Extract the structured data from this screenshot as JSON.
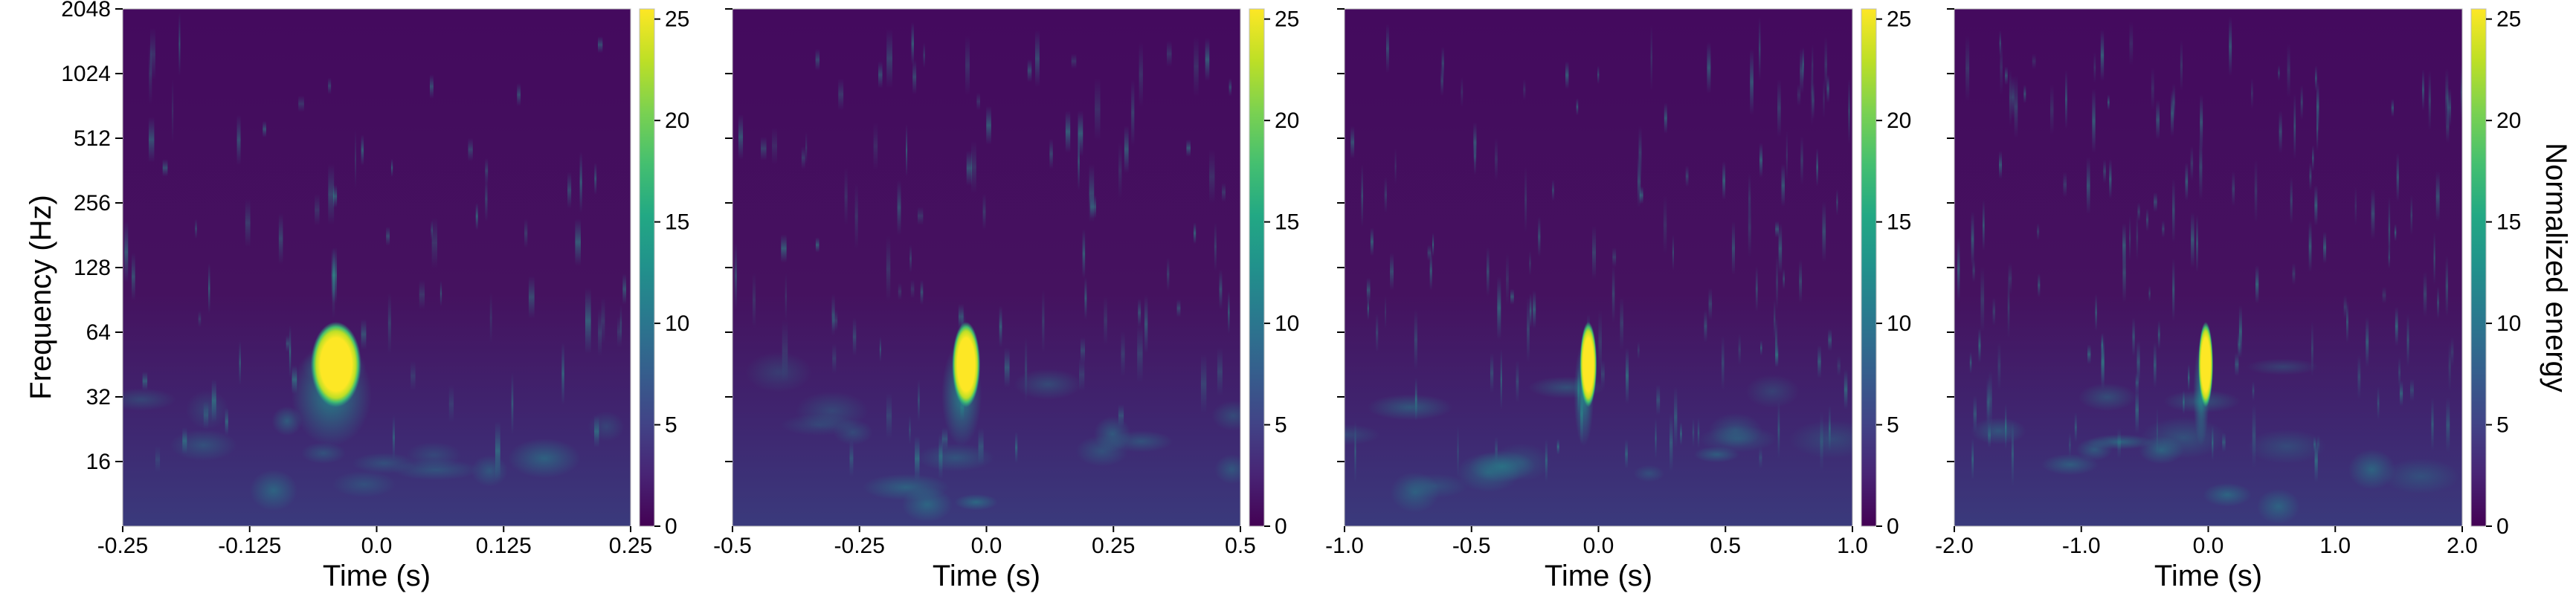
{
  "chart_data": [
    {
      "type": "heatmap",
      "xlabel": "Time (s)",
      "ylabel": "Frequency (Hz)",
      "colorbar_label": "",
      "xlim": [
        -0.25,
        0.25
      ],
      "xticks": [
        -0.25,
        -0.125,
        0.0,
        0.125,
        0.25
      ],
      "xtick_labels": [
        "-0.25",
        "-0.125",
        "0.0",
        "0.125",
        "0.25"
      ],
      "ylim": [
        8,
        2048
      ],
      "yscale": "log2",
      "yticks": [
        16,
        32,
        64,
        128,
        256,
        512,
        1024,
        2048
      ],
      "ytick_labels": [
        "16",
        "32",
        "64",
        "128",
        "256",
        "512",
        "1024",
        "2048"
      ],
      "clim": [
        0,
        25.5
      ],
      "cticks": [
        0,
        5,
        10,
        15,
        20,
        25
      ],
      "ctick_labels": [
        "0",
        "5",
        "10",
        "15",
        "20",
        "25"
      ],
      "colormap": "viridis",
      "peak": {
        "time": -0.04,
        "freq_low": 32,
        "freq_high": 64,
        "energy": 25.5
      }
    },
    {
      "type": "heatmap",
      "xlabel": "Time (s)",
      "ylabel": "",
      "colorbar_label": "",
      "xlim": [
        -0.5,
        0.5
      ],
      "xticks": [
        -0.5,
        -0.25,
        0.0,
        0.25,
        0.5
      ],
      "xtick_labels": [
        "-0.5",
        "-0.25",
        "0.0",
        "0.25",
        "0.5"
      ],
      "ylim": [
        8,
        2048
      ],
      "yscale": "log2",
      "clim": [
        0,
        25.5
      ],
      "cticks": [
        0,
        5,
        10,
        15,
        20,
        25
      ],
      "ctick_labels": [
        "0",
        "5",
        "10",
        "15",
        "20",
        "25"
      ],
      "colormap": "viridis",
      "peak": {
        "time": -0.04,
        "freq_low": 32,
        "freq_high": 64,
        "energy": 25.5
      }
    },
    {
      "type": "heatmap",
      "xlabel": "Time (s)",
      "ylabel": "",
      "colorbar_label": "",
      "xlim": [
        -1.0,
        1.0
      ],
      "xticks": [
        -1.0,
        -0.5,
        0.0,
        0.5,
        1.0
      ],
      "xtick_labels": [
        "-1.0",
        "-0.5",
        "0.0",
        "0.5",
        "1.0"
      ],
      "ylim": [
        8,
        2048
      ],
      "yscale": "log2",
      "clim": [
        0,
        25.5
      ],
      "cticks": [
        0,
        5,
        10,
        15,
        20,
        25
      ],
      "ctick_labels": [
        "0",
        "5",
        "10",
        "15",
        "20",
        "25"
      ],
      "colormap": "viridis",
      "peak": {
        "time": -0.04,
        "freq_low": 32,
        "freq_high": 64,
        "energy": 25.5
      }
    },
    {
      "type": "heatmap",
      "xlabel": "Time (s)",
      "ylabel": "",
      "colorbar_label": "Normalized energy",
      "xlim": [
        -2.0,
        2.0
      ],
      "xticks": [
        -2.0,
        -1.0,
        0.0,
        1.0,
        2.0
      ],
      "xtick_labels": [
        "-2.0",
        "-1.0",
        "0.0",
        "1.0",
        "2.0"
      ],
      "ylim": [
        8,
        2048
      ],
      "yscale": "log2",
      "clim": [
        0,
        25.5
      ],
      "cticks": [
        0,
        5,
        10,
        15,
        20,
        25
      ],
      "ctick_labels": [
        "0",
        "5",
        "10",
        "15",
        "20",
        "25"
      ],
      "colormap": "viridis",
      "peak": {
        "time": -0.02,
        "freq_low": 32,
        "freq_high": 64,
        "energy": 25.5
      }
    }
  ]
}
